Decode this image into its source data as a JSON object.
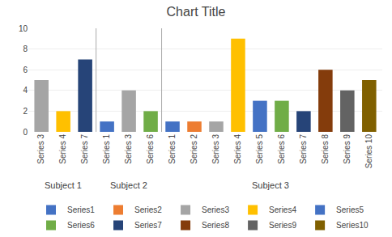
{
  "chart_data": {
    "type": "bar",
    "title": "Chart Title",
    "categories": [
      [
        "Subject 1",
        "Series 3"
      ],
      [
        "Subject 1",
        "Series 4"
      ],
      [
        "Subject 1",
        "Series 7"
      ],
      [
        "Subject 2",
        "Series 1"
      ],
      [
        "Subject 2",
        "Series 3"
      ],
      [
        "Subject 2",
        "Series 6"
      ],
      [
        "Subject 3",
        "Series 1"
      ],
      [
        "Subject 3",
        "Series 2"
      ],
      [
        "Subject 3",
        "Series 3"
      ],
      [
        "Subject 3",
        "Series 4"
      ],
      [
        "Subject 3",
        "Series 5"
      ],
      [
        "Subject 3",
        "Series 6"
      ],
      [
        "Subject 3",
        "Series 7"
      ],
      [
        "Subject 3",
        "Series 8"
      ],
      [
        "Subject 3",
        "Series 9"
      ],
      [
        "Subject 3",
        "Series 10"
      ]
    ],
    "series": [
      {
        "name": "Series1",
        "color": "#4472c4",
        "values": [
          null,
          null,
          null,
          1,
          null,
          null,
          1,
          null,
          null,
          null,
          null,
          null,
          null,
          null,
          null,
          null
        ]
      },
      {
        "name": "Series2",
        "color": "#ed7d31",
        "values": [
          null,
          null,
          null,
          null,
          null,
          null,
          null,
          1,
          null,
          null,
          null,
          null,
          null,
          null,
          null,
          null
        ]
      },
      {
        "name": "Series3",
        "color": "#a5a5a5",
        "values": [
          5,
          null,
          null,
          null,
          4,
          null,
          null,
          null,
          1,
          null,
          null,
          null,
          null,
          null,
          null,
          null
        ]
      },
      {
        "name": "Series4",
        "color": "#ffc000",
        "values": [
          null,
          2,
          null,
          null,
          null,
          null,
          null,
          null,
          null,
          9,
          null,
          null,
          null,
          null,
          null,
          null
        ]
      },
      {
        "name": "Series5",
        "color": "#4472c4",
        "values": [
          null,
          null,
          null,
          null,
          null,
          null,
          null,
          null,
          null,
          null,
          3,
          null,
          null,
          null,
          null,
          null
        ]
      },
      {
        "name": "Series6",
        "color": "#70ad47",
        "values": [
          null,
          null,
          null,
          null,
          null,
          2,
          null,
          null,
          null,
          null,
          null,
          3,
          null,
          null,
          null,
          null
        ]
      },
      {
        "name": "Series7",
        "color": "#264478",
        "values": [
          null,
          null,
          7,
          null,
          null,
          null,
          null,
          null,
          null,
          null,
          null,
          null,
          2,
          null,
          null,
          null
        ]
      },
      {
        "name": "Series8",
        "color": "#843c0c",
        "values": [
          null,
          null,
          null,
          null,
          null,
          null,
          null,
          null,
          null,
          null,
          null,
          null,
          null,
          6,
          null,
          null
        ]
      },
      {
        "name": "Series9",
        "color": "#636363",
        "values": [
          null,
          null,
          null,
          null,
          null,
          null,
          null,
          null,
          null,
          null,
          null,
          null,
          null,
          null,
          4,
          null
        ]
      },
      {
        "name": "Series10",
        "color": "#806000",
        "values": [
          null,
          null,
          null,
          null,
          null,
          null,
          null,
          null,
          null,
          null,
          null,
          null,
          null,
          null,
          null,
          5
        ]
      }
    ],
    "ylim": [
      0,
      10
    ],
    "yticks": [
      0,
      2,
      4,
      6,
      8,
      10
    ],
    "grid": true,
    "legend": "bottom"
  }
}
